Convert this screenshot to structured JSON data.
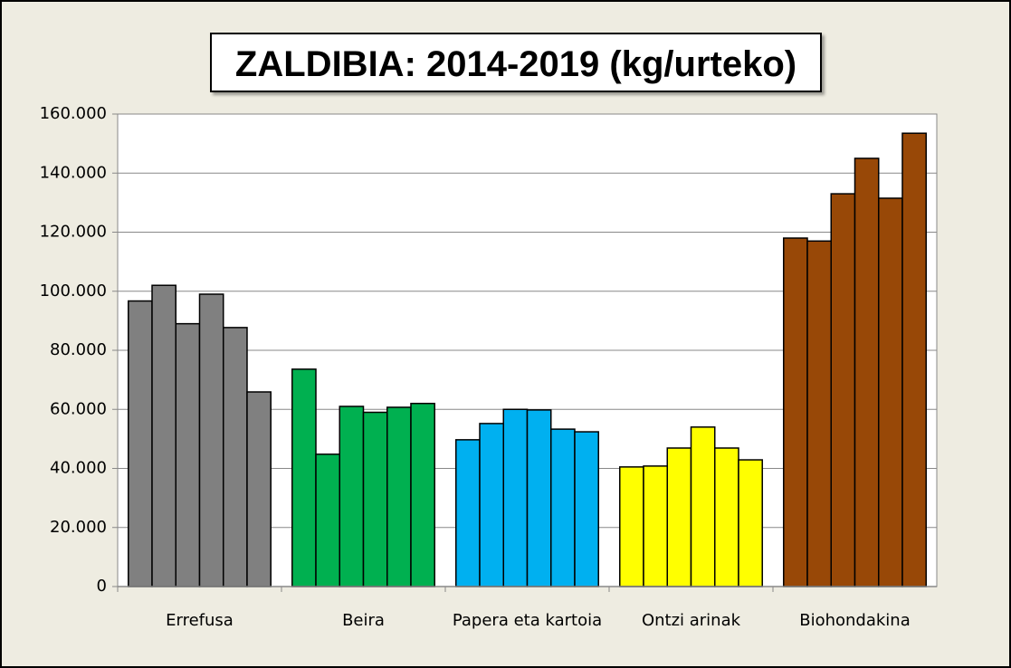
{
  "chart_data": {
    "type": "bar",
    "title": "ZALDIBIA: 2014-2019 (kg/urteko)",
    "categories": [
      "Errefusa",
      "Beira",
      "Papera eta kartoia",
      "Ontzi arinak",
      "Biohondakina"
    ],
    "colors": [
      "#808080",
      "#00b050",
      "#00b0f0",
      "#ffff00",
      "#984807"
    ],
    "series": [
      {
        "values": [
          96700,
          73600,
          49700,
          40500,
          118000
        ]
      },
      {
        "values": [
          102000,
          44800,
          55200,
          40800,
          117000
        ]
      },
      {
        "values": [
          89000,
          61000,
          60000,
          46900,
          133000
        ]
      },
      {
        "values": [
          99000,
          59000,
          59800,
          54000,
          145000
        ]
      },
      {
        "values": [
          87700,
          60700,
          53300,
          46900,
          131500
        ]
      },
      {
        "values": [
          65900,
          62000,
          52400,
          42900,
          153500
        ]
      }
    ],
    "ylim": [
      0,
      160000
    ],
    "yticks": [
      0,
      {
        "value": 20000,
        "label": "20.000"
      },
      {
        "value": 40000,
        "label": "40.000"
      },
      {
        "value": 60000,
        "label": "60.000"
      },
      {
        "value": 80000,
        "label": "80.000"
      },
      {
        "value": 100000,
        "label": "100.000"
      },
      {
        "value": 120000,
        "label": "120.000"
      },
      {
        "value": 140000,
        "label": "140.000"
      },
      {
        "value": 160000,
        "label": "160.000"
      }
    ],
    "grid": true
  }
}
